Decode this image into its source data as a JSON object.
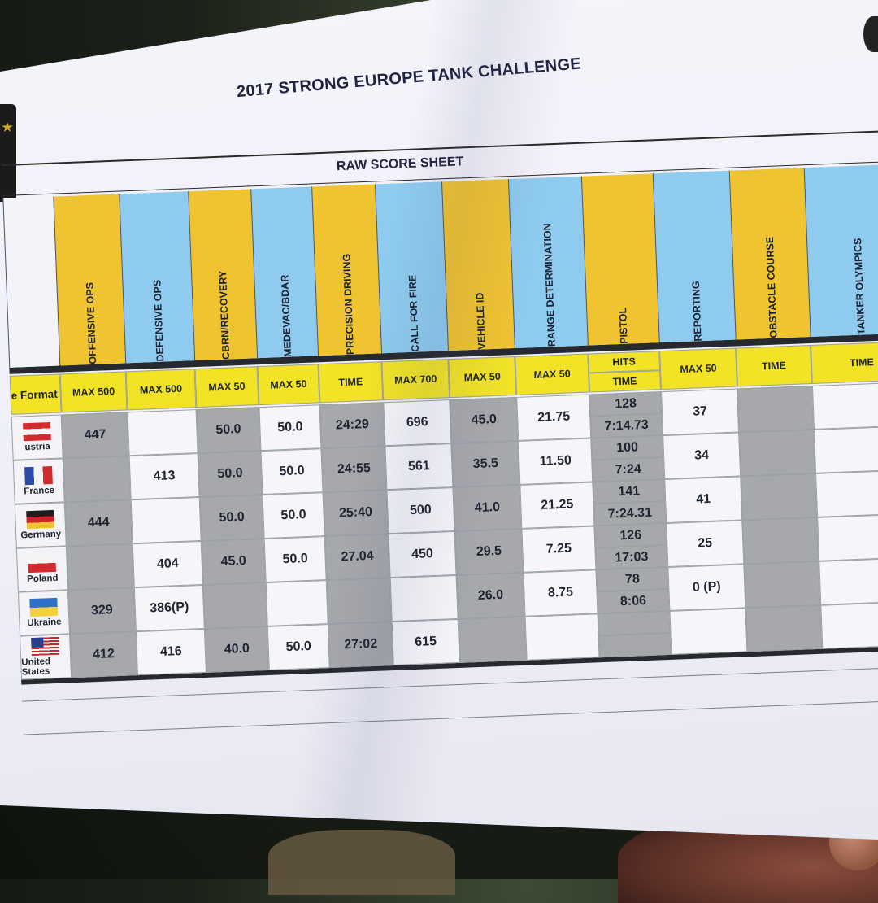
{
  "document": {
    "title": "2017 STRONG EUROPE TANK CHALLENGE",
    "subtitle": "RAW SCORE SHEET",
    "format_label": "e Format"
  },
  "columns": [
    {
      "name": "OFFENSIVE OPS",
      "header": "MAX 500",
      "color": "gold"
    },
    {
      "name": "DEFENSIVE OPS",
      "header": "MAX 500",
      "color": "blue"
    },
    {
      "name": "CBRN/RECOVERY",
      "header": "MAX 50",
      "color": "gold"
    },
    {
      "name": "MEDEVAC/BDAR",
      "header": "MAX 50",
      "color": "blue"
    },
    {
      "name": "PRECISION DRIVING",
      "header": "TIME",
      "color": "gold"
    },
    {
      "name": "CALL FOR FIRE",
      "header": "MAX 700",
      "color": "blue"
    },
    {
      "name": "VEHICLE ID",
      "header": "MAX 50",
      "color": "gold"
    },
    {
      "name": "RANGE DETERMINATION",
      "header": "MAX 50",
      "color": "blue"
    },
    {
      "name": "PISTOL",
      "header": "HITS",
      "header2": "TIME",
      "color": "gold"
    },
    {
      "name": "REPORTING",
      "header": "MAX 50",
      "color": "blue"
    },
    {
      "name": "OBSTACLE COURSE",
      "header": "TIME",
      "color": "gold"
    },
    {
      "name": "TANKER OLYMPICS",
      "header": "TIME",
      "color": "blue"
    }
  ],
  "rows": [
    {
      "country": "ustria",
      "flag": "austria",
      "cells": [
        "447",
        "",
        "50.0",
        "50.0",
        "24:29",
        "696",
        "45.0",
        "21.75",
        "128",
        "7:14.73",
        "37",
        "",
        ""
      ]
    },
    {
      "country": "France",
      "flag": "france",
      "cells": [
        "",
        "413",
        "50.0",
        "50.0",
        "24:55",
        "561",
        "35.5",
        "11.50",
        "100",
        "7:24",
        "34",
        "",
        ""
      ]
    },
    {
      "country": "Germany",
      "flag": "germany",
      "cells": [
        "444",
        "",
        "50.0",
        "50.0",
        "25:40",
        "500",
        "41.0",
        "21.25",
        "141",
        "7:24.31",
        "41",
        "",
        ""
      ]
    },
    {
      "country": "Poland",
      "flag": "poland",
      "cells": [
        "",
        "404",
        "45.0",
        "50.0",
        "27.04",
        "450",
        "29.5",
        "7.25",
        "126",
        "17:03",
        "25",
        "",
        ""
      ]
    },
    {
      "country": "Ukraine",
      "flag": "ukraine",
      "cells": [
        "329",
        "386(P)",
        "",
        "",
        "",
        "",
        "26.0",
        "8.75",
        "78",
        "8:06",
        "0 (P)",
        "",
        ""
      ]
    },
    {
      "country": "United States",
      "flag": "usa",
      "cells": [
        "412",
        "416",
        "40.0",
        "50.0",
        "27:02",
        "615",
        "",
        "",
        "",
        "",
        "",
        "",
        ""
      ]
    }
  ],
  "colors": {
    "gold": "#f0c331",
    "blue": "#8ecbee",
    "yellow_header": "#f2e327",
    "grey_cell": "#a7a8ac"
  }
}
